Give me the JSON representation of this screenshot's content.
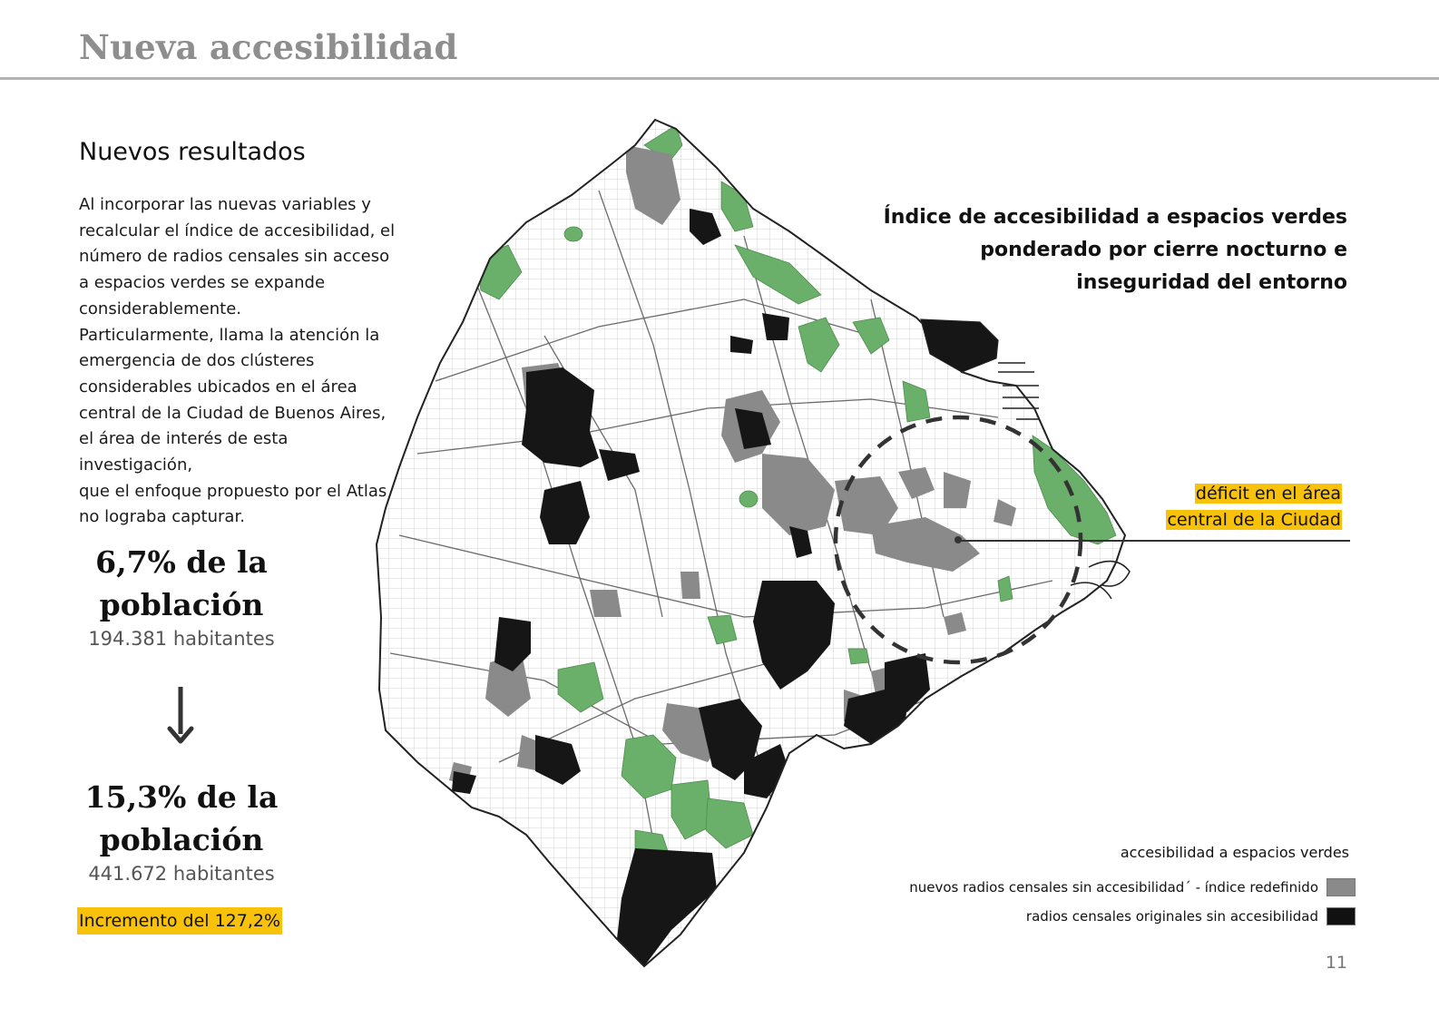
{
  "header": {
    "title": "Nueva accesibilidad"
  },
  "section": {
    "title": "Nuevos resultados",
    "paragraph_lines": [
      "Al incorporar las nuevas variables y",
      "recalcular el índice de accesibilidad, el",
      "número de radios censales sin acceso",
      "a espacios verdes se expande",
      "considerablemente.",
      "Particularmente, llama la atención la",
      "emergencia de dos clústeres",
      "considerables ubicados en el área",
      "central de la Ciudad de Buenos Aires,",
      "el área de interés de esta investigación,",
      "que el enfoque propuesto por el Atlas",
      "no lograba capturar."
    ]
  },
  "stats": {
    "before": {
      "line1": "6,7% de la",
      "line2": "población",
      "detail": "194.381 habitantes"
    },
    "after": {
      "line1": "15,3% de la",
      "line2": "población",
      "detail": "441.672 habitantes"
    },
    "increase": "Incremento del 127,2%"
  },
  "map": {
    "title_lines": [
      "Índice de accesibilidad a espacios verdes",
      "ponderado por cierre nocturno e",
      "inseguridad del entorno"
    ],
    "callout_lines": [
      "déficit en el área",
      "central de la Ciudad"
    ],
    "colors": {
      "green_space": "#6aaf6a",
      "new_no_access": "#8a8a8a",
      "original_no_access": "#161616",
      "highlight": "#f8c10a"
    }
  },
  "legend": {
    "title": "accesibilidad a espacios verdes",
    "items": [
      {
        "label": "nuevos radios censales sin accesibilidad´ - índice redefinido",
        "color": "#8a8a8a"
      },
      {
        "label": "radios censales originales sin accesibilidad",
        "color": "#111111"
      }
    ]
  },
  "page": {
    "number": "11"
  }
}
